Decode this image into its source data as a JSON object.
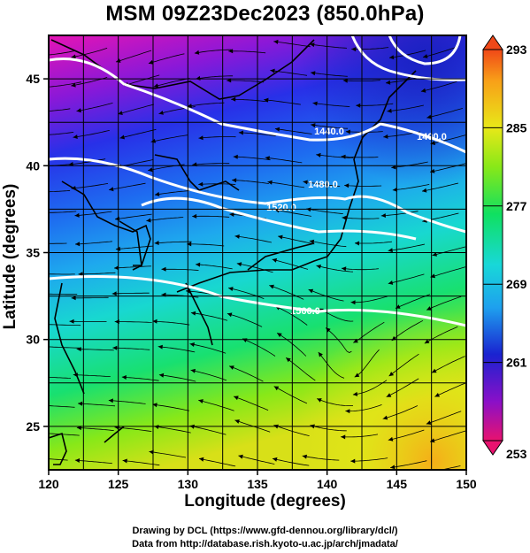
{
  "title": "MSM 09Z23Dec2023 (850.0hPa)",
  "axes": {
    "xlabel": "Longitude (degrees)",
    "ylabel": "Latitude  (degrees)",
    "xlim": [
      120,
      150
    ],
    "ylim": [
      22.5,
      47.5
    ],
    "xticks": [
      "120",
      "125",
      "130",
      "135",
      "140",
      "145",
      "150"
    ],
    "yticks": [
      "25",
      "30",
      "35",
      "40",
      "45"
    ],
    "xtick_values": [
      120,
      125,
      130,
      135,
      140,
      145,
      150
    ],
    "ytick_values": [
      25,
      30,
      35,
      40,
      45
    ],
    "grid": true
  },
  "colorbar": {
    "labels": [
      "293",
      "285",
      "277",
      "269",
      "261",
      "253"
    ],
    "values": [
      293,
      285,
      277,
      269,
      261,
      253
    ],
    "range": [
      253,
      293
    ],
    "colors": [
      "#e8126f",
      "#8a10c8",
      "#1a22d0",
      "#1ea0ee",
      "#18d8d8",
      "#10e060",
      "#88e818",
      "#e8e818",
      "#f8a018",
      "#f04818"
    ]
  },
  "contours": [
    {
      "label": "1400.0"
    },
    {
      "label": "1440.0"
    },
    {
      "label": "1480.0"
    },
    {
      "label": "1520.0"
    },
    {
      "label": "1560.0"
    }
  ],
  "credits": {
    "line1": "Drawing by DCL (https://www.gfd-dennou.org/library/dcl/)",
    "line2": "Data from http://database.rish.kyoto-u.ac.jp/arch/jmadata/"
  },
  "chart_data": {
    "type": "heatmap",
    "title": "MSM 09Z23Dec2023 (850.0hPa)",
    "xlabel": "Longitude (degrees)",
    "ylabel": "Latitude  (degrees)",
    "xlim": [
      120,
      150
    ],
    "ylim": [
      22.5,
      47.5
    ],
    "colorbar_range": [
      253,
      293
    ],
    "contour_values": [
      1400,
      1440,
      1480,
      1520,
      1560
    ],
    "grid": true
  }
}
